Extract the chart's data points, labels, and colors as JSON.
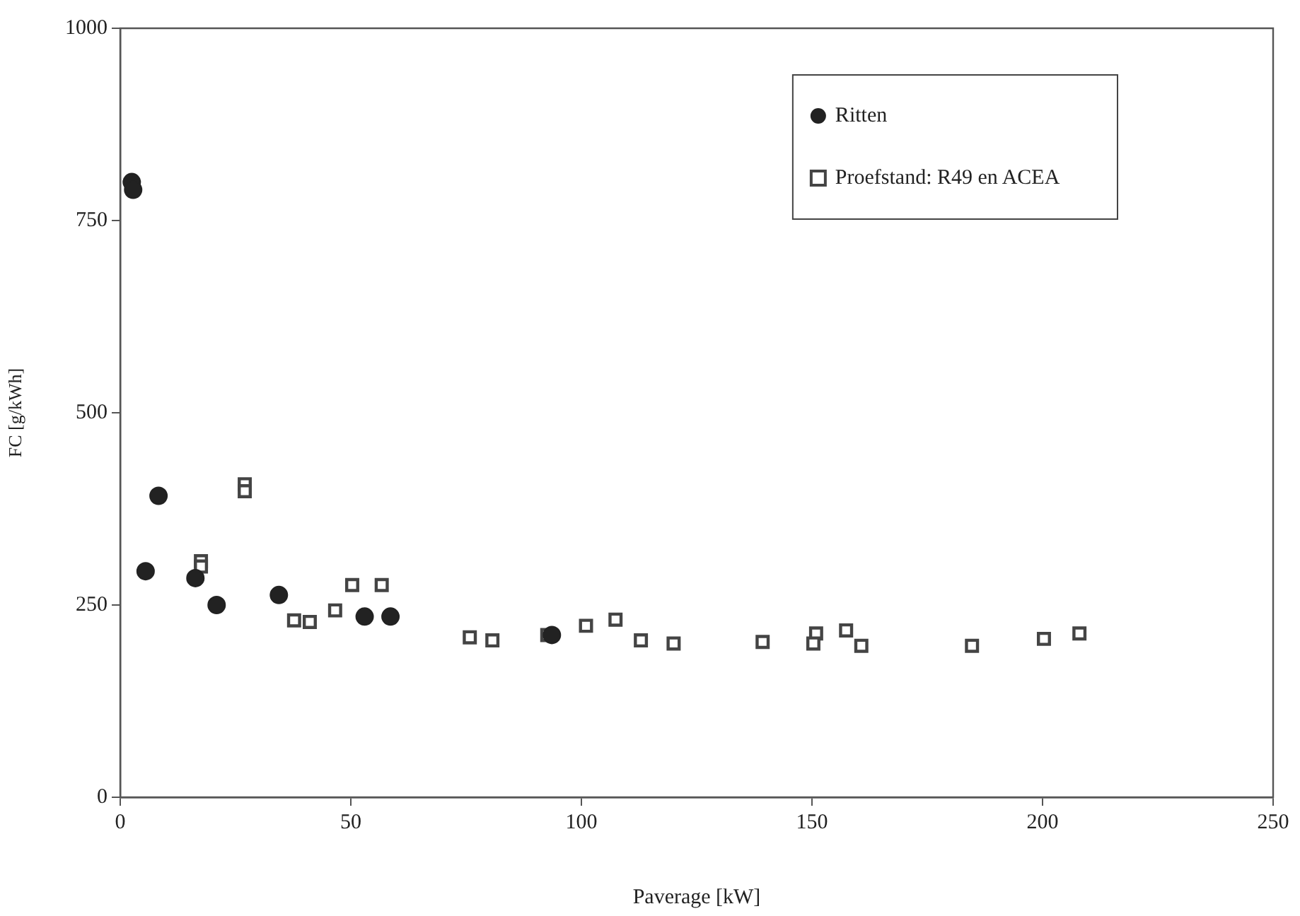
{
  "chart_data": {
    "type": "scatter",
    "xlabel": "Paverage [kW]",
    "ylabel": "FC [g/kWh]",
    "xlim": [
      0,
      250
    ],
    "xticks": [
      0,
      50,
      100,
      150,
      200,
      250
    ],
    "ylim": [
      0,
      1000
    ],
    "yticks": [
      0,
      250,
      500,
      750,
      1000
    ],
    "grid": false,
    "legend": "top right",
    "series": [
      {
        "name": "Ritten",
        "color": "#222222",
        "marker": "circle",
        "x": [
          2.5,
          2.8,
          8.3,
          5.5,
          16.3,
          20.9,
          34.4,
          53,
          58.6,
          93.6
        ],
        "values": [
          800,
          790,
          392,
          294,
          285,
          250,
          263,
          235,
          235,
          211
        ]
      },
      {
        "name": "Proefstand: R49 en ACEA",
        "color": "#444444",
        "marker": "square",
        "x": [
          27,
          27,
          17.5,
          17.5,
          37.7,
          41.1,
          46.6,
          50.3,
          56.7,
          75.8,
          80.7,
          92.6,
          101,
          107.4,
          112.9,
          120,
          139.3,
          150.9,
          150.3,
          157.4,
          160.7,
          184.7,
          200.3,
          208
        ],
        "values": [
          407,
          398,
          307,
          300,
          230,
          228,
          243,
          276,
          276,
          208,
          204,
          211,
          223,
          231,
          204,
          200,
          202,
          213,
          200,
          217,
          197,
          197,
          206,
          213
        ]
      }
    ]
  }
}
